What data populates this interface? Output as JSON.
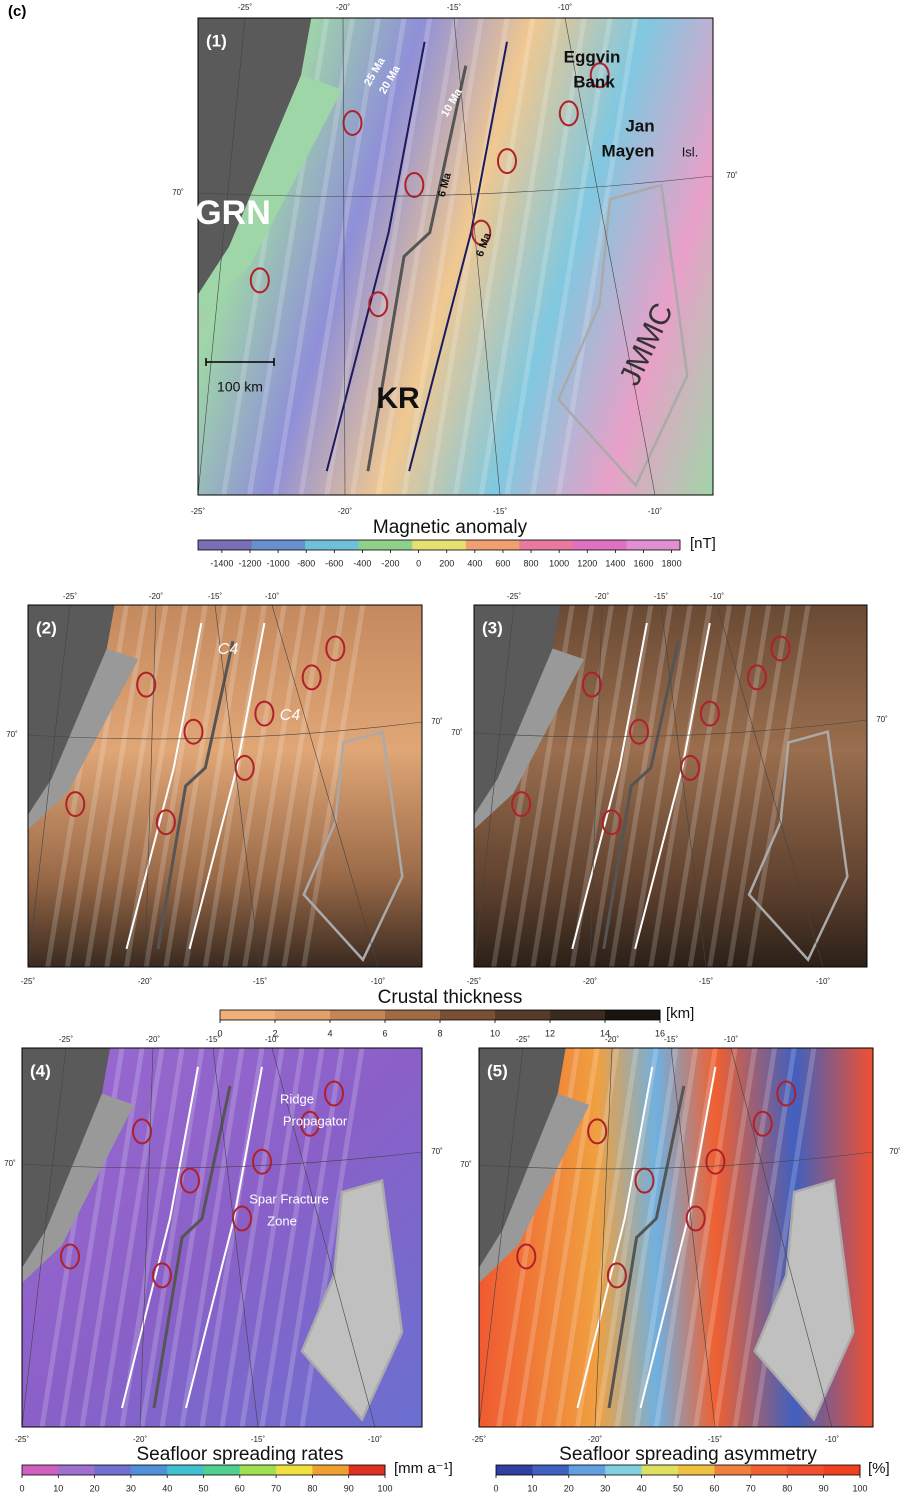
{
  "figure_label": "(c)",
  "panels": [
    {
      "label": "(1)",
      "lon_top": [
        "-25˚",
        "-20˚",
        "-15˚",
        "-10˚"
      ],
      "lon_bottom": [
        "-25˚",
        "-20˚",
        "-15˚",
        "-10˚"
      ],
      "lat_left": "70˚",
      "lat_right": "70˚",
      "annotations": [
        "25 Ma",
        "20 Ma",
        "10 Ma",
        "Eggvin",
        "Bank",
        "Jan",
        "Mayen",
        "Isl.",
        "GRN",
        "6 Ma",
        "6 Ma",
        "JMMC",
        "100 km",
        "KR"
      ]
    },
    {
      "label": "(2)",
      "lon_top": [
        "-25˚",
        "-20˚",
        "-15˚",
        "-10˚"
      ],
      "lon_bottom": [
        "-25˚",
        "-20˚",
        "-15˚",
        "-10˚"
      ],
      "lat_left": "70˚",
      "lat_right": "70˚",
      "annotations": [
        "C4",
        "C4"
      ]
    },
    {
      "label": "(3)",
      "lon_top": [
        "-25˚",
        "-20˚",
        "-15˚",
        "-10˚"
      ],
      "lon_bottom": [
        "-25˚",
        "-20˚",
        "-15˚",
        "-10˚"
      ],
      "lat_left": "70˚",
      "lat_right": "70˚",
      "annotations": []
    },
    {
      "label": "(4)",
      "lon_top": [
        "-25˚",
        "-20˚",
        "-15˚",
        "-10˚"
      ],
      "lon_bottom": [
        "-25˚",
        "-20˚",
        "-15˚",
        "-10˚"
      ],
      "lat_left": "70˚",
      "lat_right": "70˚",
      "annotations": [
        "Ridge",
        "Propagator",
        "Spar Fracture",
        "Zone"
      ]
    },
    {
      "label": "(5)",
      "lon_top": [
        "-25˚",
        "-20˚",
        "-15˚",
        "-10˚"
      ],
      "lon_bottom": [
        "-25˚",
        "-20˚",
        "-15˚",
        "-10˚"
      ],
      "lat_left": "70˚",
      "lat_right": "70˚",
      "annotations": []
    }
  ],
  "colorbars": [
    {
      "title": "Magnetic anomaly",
      "unit": "[nT]",
      "lim": [
        -1570,
        1860
      ],
      "ticks": [
        -1400,
        -1200,
        -1000,
        -800,
        -600,
        -400,
        -200,
        0,
        200,
        400,
        600,
        800,
        1000,
        1200,
        1400,
        1600,
        1800
      ],
      "colors": [
        "#7a6fb5",
        "#6a8fd0",
        "#6fc0d8",
        "#8fd08a",
        "#e6e070",
        "#f0a070",
        "#e87aa0",
        "#e070c0",
        "#e090d0"
      ]
    },
    {
      "title": "Crustal thickness",
      "unit": "[km]",
      "lim": [
        0,
        16
      ],
      "ticks": [
        0,
        2,
        4,
        6,
        8,
        10,
        12,
        14,
        16
      ],
      "colors": [
        "#f0b07a",
        "#dfa06c",
        "#c48558",
        "#a06a45",
        "#7a5035",
        "#573a28",
        "#3a2a20",
        "#1a1410"
      ]
    },
    {
      "title": "Seafloor spreading rates",
      "unit": "[mm a⁻¹]",
      "lim": [
        0,
        100
      ],
      "ticks": [
        0,
        10,
        20,
        30,
        40,
        50,
        60,
        70,
        80,
        90,
        100
      ],
      "colors": [
        "#d060c0",
        "#a070d0",
        "#7070d0",
        "#5090d8",
        "#40c0d0",
        "#50d090",
        "#a0e050",
        "#f0e040",
        "#f0a030",
        "#e03020"
      ]
    },
    {
      "title": "Seafloor spreading asymmetry",
      "unit": "[%]",
      "lim": [
        0,
        100
      ],
      "ticks": [
        0,
        10,
        20,
        30,
        40,
        50,
        60,
        70,
        80,
        90,
        100
      ],
      "colors": [
        "#3040a0",
        "#4060c0",
        "#60a0e0",
        "#80d0e0",
        "#e0e060",
        "#f0c040",
        "#f08040",
        "#f06030",
        "#f05030",
        "#f04020"
      ]
    }
  ]
}
